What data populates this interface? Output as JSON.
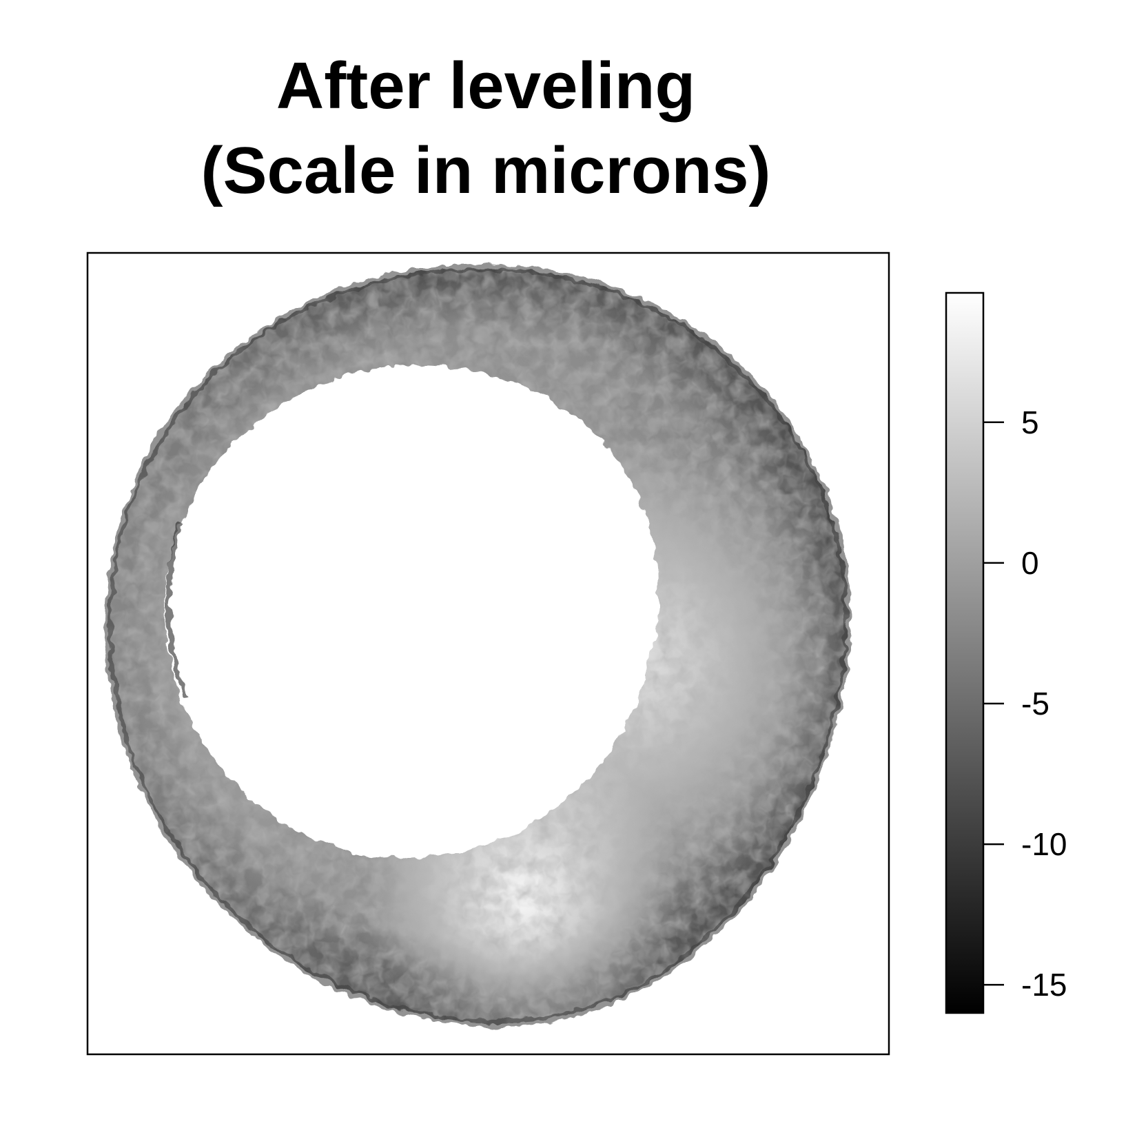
{
  "chart_data": {
    "type": "heatmap",
    "title_lines": [
      "After leveling",
      "(Scale in microns)"
    ],
    "xlabel": "",
    "ylabel": "",
    "colorbar": {
      "range": [
        -16,
        9.6
      ],
      "ticks": [
        5,
        0,
        -5,
        -10,
        -15
      ],
      "tick_labels": [
        "5",
        "0",
        "-5",
        "-10",
        "-15"
      ],
      "colormap": "grayscale",
      "low_color": "#000000",
      "high_color": "#ffffff"
    },
    "image_description": "annular surface height map; inner hole displayed white (above scale range); brighter region along right side of the ring"
  },
  "colors": {
    "frame": "#000000",
    "background": "#ffffff"
  }
}
